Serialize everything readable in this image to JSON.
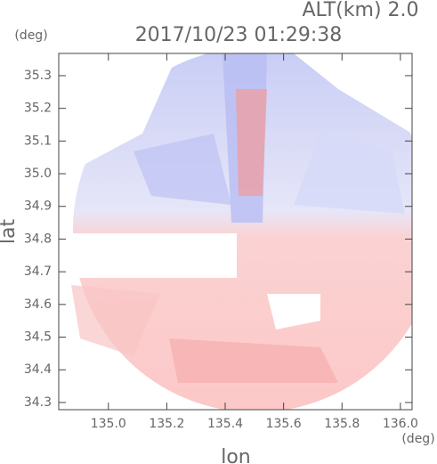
{
  "chart_data": {
    "type": "radar",
    "title": "2017/10/23 01:29:38",
    "subtitle": "ALT(km) 2.0",
    "y_unit": "(deg)",
    "x_unit": "(deg)",
    "x_label": "lon",
    "y_label": "lat",
    "xlim": [
      134.83,
      136.04
    ],
    "xticks": [
      {
        "value": 135,
        "label": "135.0"
      },
      135.2,
      135.4,
      135.6,
      135.8,
      {
        "value": 136,
        "label": "136.0"
      }
    ],
    "ylim": [
      34.278,
      35.368
    ],
    "yticks": [
      34.3,
      34.4,
      34.5,
      34.6,
      34.7,
      34.8,
      34.9,
      {
        "value": 35,
        "label": "35.0"
      },
      35.1,
      35.2,
      35.3
    ]
  }
}
